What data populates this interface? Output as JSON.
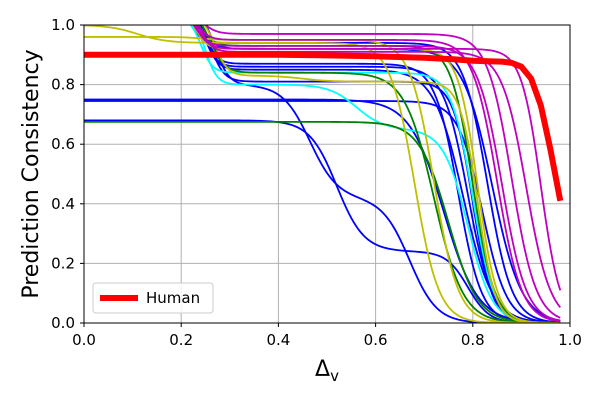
{
  "chart_data": {
    "type": "line",
    "title": "",
    "xlabel": "Δ",
    "xlabel_sub": "v",
    "ylabel": "Prediction Consistency",
    "xlim": [
      0.0,
      1.0
    ],
    "ylim": [
      0.0,
      1.0
    ],
    "xticks": [
      "0.0",
      "0.2",
      "0.4",
      "0.6",
      "0.8",
      "1.0"
    ],
    "yticks": [
      "0.0",
      "0.2",
      "0.4",
      "0.6",
      "0.8",
      "1.0"
    ],
    "grid": true,
    "legend": {
      "position": "bottom-left",
      "entries": [
        "Human"
      ]
    },
    "human": {
      "name": "Human",
      "color": "#ff0000",
      "x": [
        0.0,
        0.1,
        0.2,
        0.3,
        0.4,
        0.5,
        0.6,
        0.7,
        0.76,
        0.8,
        0.84,
        0.86,
        0.88,
        0.9,
        0.92,
        0.94,
        0.96,
        0.98
      ],
      "y": [
        0.9,
        0.9,
        0.9,
        0.9,
        0.9,
        0.898,
        0.895,
        0.89,
        0.885,
        0.88,
        0.878,
        0.877,
        0.873,
        0.86,
        0.82,
        0.73,
        0.58,
        0.41
      ]
    },
    "series": [
      {
        "name": "",
        "color": "#0000ff",
        "plateau": 0.68,
        "start": 0.67,
        "drop": 0.44,
        "h0": 0.52,
        "x0": 0.79,
        "w": 0.022
      },
      {
        "name": "",
        "color": "#0000ff",
        "plateau": 0.745,
        "start": 0.745,
        "x0": 0.82,
        "w": 0.025
      },
      {
        "name": "",
        "color": "#0000ff",
        "plateau": 0.86,
        "start": 1.05,
        "kx": 0.25,
        "kw": 0.012,
        "x0": 0.79,
        "w": 0.025
      },
      {
        "name": "",
        "color": "#0000ff",
        "plateau": 0.81,
        "start": 1.05,
        "kx": 0.26,
        "kw": 0.014,
        "x0": 0.8,
        "w": 0.02
      },
      {
        "name": "",
        "color": "#0000ff",
        "plateau": 0.87,
        "start": 1.06,
        "kx": 0.25,
        "kw": 0.012,
        "x0": 0.77,
        "w": 0.024
      },
      {
        "name": "",
        "color": "#0000ff",
        "plateau": 0.92,
        "start": 1.05,
        "kx": 0.24,
        "kw": 0.015,
        "x0": 0.84,
        "w": 0.03
      },
      {
        "name": "",
        "color": "#0000ff",
        "plateau": 0.94,
        "start": 1.06,
        "kx": 0.22,
        "kw": 0.012,
        "x0": 0.83,
        "w": 0.025
      },
      {
        "name": "",
        "color": "#0000ff",
        "plateau": 0.85,
        "start": 1.05,
        "kx": 0.25,
        "kw": 0.013,
        "x0": 0.78,
        "w": 0.03
      },
      {
        "name": "",
        "color": "#0000ff",
        "plateau": 0.75,
        "start": 0.75,
        "x0": 0.74,
        "w": 0.035
      },
      {
        "name": "",
        "color": "#0000ff",
        "plateau": 0.8,
        "start": 1.05,
        "kx": 0.27,
        "kw": 0.014,
        "drop": 0.38,
        "h0": 0.465,
        "x0": 0.67,
        "w": 0.028
      },
      {
        "name": "",
        "color": "#00ffff",
        "plateau": 0.8,
        "start": 1.03,
        "kx": 0.25,
        "kw": 0.012,
        "drop": 0.15,
        "h0": 0.56,
        "x0": 0.79,
        "w": 0.025
      },
      {
        "name": "",
        "color": "#00ffff",
        "plateau": 0.84,
        "start": 1.03,
        "kx": 0.24,
        "kw": 0.012,
        "x0": 0.8,
        "w": 0.022
      },
      {
        "name": "",
        "color": "#008000",
        "plateau": 0.675,
        "start": 0.675,
        "x0": 0.75,
        "w": 0.03
      },
      {
        "name": "",
        "color": "#008000",
        "plateau": 0.84,
        "start": 1.05,
        "kx": 0.26,
        "kw": 0.015,
        "x0": 0.72,
        "w": 0.03
      },
      {
        "name": "",
        "color": "#008000",
        "plateau": 0.93,
        "start": 1.05,
        "kx": 0.24,
        "kw": 0.014,
        "x0": 0.8,
        "w": 0.022
      },
      {
        "name": "",
        "color": "#bfbf00",
        "plateau": 0.94,
        "start": 1.0,
        "kx": 0.11,
        "kw": 0.03,
        "x0": 0.68,
        "w": 0.025
      },
      {
        "name": "",
        "color": "#bfbf00",
        "plateau": 0.95,
        "start": 0.96,
        "kx": 0.24,
        "kw": 0.02,
        "x0": 0.72,
        "w": 0.025
      },
      {
        "name": "",
        "color": "#bfbf00",
        "plateau": 0.83,
        "start": 1.03,
        "kx": 0.27,
        "kw": 0.013,
        "drop": 0.02,
        "h0": 0.45,
        "x0": 0.81,
        "w": 0.018
      },
      {
        "name": "",
        "color": "#bfbf00",
        "plateau": 0.92,
        "start": 1.05,
        "kx": 0.23,
        "kw": 0.012,
        "x0": 0.81,
        "w": 0.02
      },
      {
        "name": "",
        "color": "#bf00bf",
        "plateau": 0.93,
        "start": 1.07,
        "kx": 0.23,
        "kw": 0.012,
        "x0": 0.86,
        "w": 0.025
      },
      {
        "name": "",
        "color": "#bf00bf",
        "plateau": 0.97,
        "start": 1.06,
        "kx": 0.24,
        "kw": 0.015,
        "x0": 0.88,
        "w": 0.025
      },
      {
        "name": "",
        "color": "#bf00bf",
        "plateau": 0.92,
        "start": 1.06,
        "kx": 0.23,
        "kw": 0.014,
        "x0": 0.94,
        "w": 0.02
      },
      {
        "name": "",
        "color": "#bf00bf",
        "plateau": 0.91,
        "start": 1.06,
        "kx": 0.24,
        "kw": 0.012,
        "x0": 0.91,
        "w": 0.025
      },
      {
        "name": "",
        "color": "#bf00bf",
        "plateau": 0.95,
        "start": 1.07,
        "kx": 0.23,
        "kw": 0.013,
        "x0": 0.85,
        "w": 0.025
      }
    ]
  }
}
